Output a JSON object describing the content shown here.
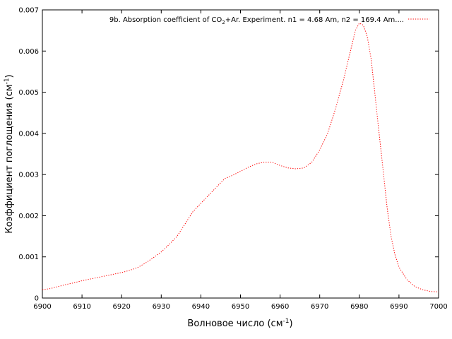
{
  "chart_data": {
    "type": "line",
    "xlabel": "Волновое число (см",
    "xlabel_sup": "-1",
    "xlabel_end": ")",
    "ylabel": "Коэффициент поглощения (см",
    "ylabel_sup": "-1",
    "ylabel_end": ")",
    "xlim": [
      6900,
      7000
    ],
    "ylim": [
      0,
      0.007
    ],
    "xticks": [
      "6900",
      "6910",
      "6920",
      "6930",
      "6940",
      "6950",
      "6960",
      "6970",
      "6980",
      "6990",
      "7000"
    ],
    "yticks": [
      "0",
      "0.001",
      "0.002",
      "0.003",
      "0.004",
      "0.005",
      "0.006",
      "0.007"
    ],
    "grid": false,
    "legend_position": "top-right",
    "line_color": "#ff0000",
    "series": [
      {
        "name": "9b. Absorption coefficient of CO",
        "name_sub": "2",
        "name_end": "+Ar. Experiment. n1 = 4.68 Am, n2 = 169.4 Am....",
        "x": [
          6900,
          6902,
          6904,
          6906,
          6908,
          6910,
          6912,
          6914,
          6916,
          6918,
          6920,
          6922,
          6924,
          6926,
          6928,
          6930,
          6932,
          6934,
          6936,
          6938,
          6940,
          6942,
          6944,
          6946,
          6948,
          6950,
          6952,
          6954,
          6956,
          6958,
          6960,
          6962,
          6964,
          6966,
          6968,
          6970,
          6972,
          6974,
          6976,
          6978,
          6979,
          6980,
          6981,
          6982,
          6983,
          6984,
          6985,
          6986,
          6987,
          6988,
          6989,
          6990,
          6992,
          6994,
          6996,
          6998,
          7000
        ],
        "y": [
          0.0002,
          0.00023,
          0.00028,
          0.00033,
          0.00037,
          0.00042,
          0.00046,
          0.0005,
          0.00054,
          0.00058,
          0.00062,
          0.00067,
          0.00074,
          0.00085,
          0.00098,
          0.00112,
          0.0013,
          0.0015,
          0.0018,
          0.0021,
          0.0023,
          0.0025,
          0.0027,
          0.0029,
          0.00298,
          0.00308,
          0.00318,
          0.00326,
          0.0033,
          0.0033,
          0.00322,
          0.00316,
          0.00314,
          0.00316,
          0.0033,
          0.0036,
          0.004,
          0.0046,
          0.0053,
          0.0061,
          0.0065,
          0.00668,
          0.00663,
          0.00635,
          0.0058,
          0.0049,
          0.004,
          0.0031,
          0.0022,
          0.0015,
          0.00105,
          0.00075,
          0.00045,
          0.00028,
          0.0002,
          0.00016,
          0.00015
        ]
      }
    ]
  }
}
